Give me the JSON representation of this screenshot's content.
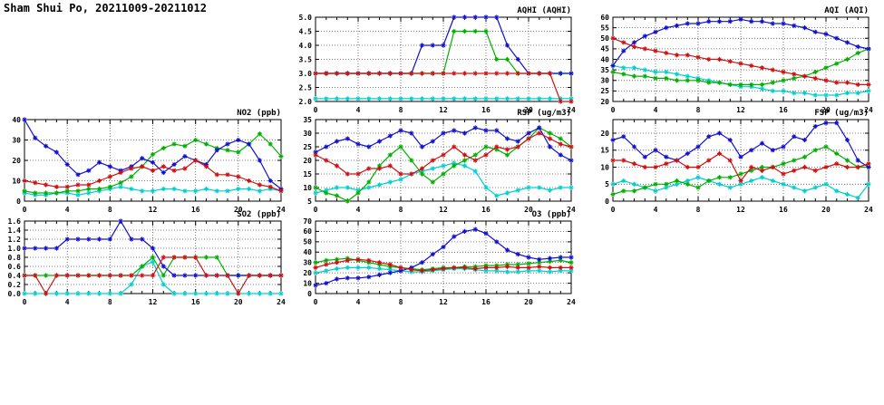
{
  "page_title": "Sham Shui Po, 20211009-20211012",
  "colors": {
    "blue": "#1010d0",
    "red": "#d01010",
    "green": "#00b000",
    "cyan": "#00d0d0"
  },
  "chart_data": [
    {
      "id": "aqhi",
      "type": "line",
      "title": "AQHI (AQHI)",
      "xlabel": "",
      "ylabel": "",
      "x_range": [
        0,
        24
      ],
      "xticks": [
        0,
        4,
        8,
        12,
        16,
        20,
        24
      ],
      "ylim": [
        2,
        5
      ],
      "yticks": [
        2,
        2.5,
        3,
        3.5,
        4,
        4.5,
        5
      ],
      "ydecimals": 1,
      "grid": true,
      "legend": "none",
      "series": [
        {
          "name": "cyan",
          "color": "cyan",
          "values": [
            2.1,
            2.1,
            2.1,
            2.1,
            2.1,
            2.1,
            2.1,
            2.1,
            2.1,
            2.1,
            2.1,
            2.1,
            2.1,
            2.1,
            2.1,
            2.1,
            2.1,
            2.1,
            2.1,
            2.1,
            2.1,
            2.1,
            2.1,
            2.1,
            2.1
          ]
        },
        {
          "name": "green",
          "color": "green",
          "values": [
            3,
            3,
            3,
            3,
            3,
            3,
            3,
            3,
            3,
            3,
            3,
            3,
            3,
            4.5,
            4.5,
            4.5,
            4.5,
            3.5,
            3.5,
            3,
            3,
            3,
            3,
            3,
            3
          ]
        },
        {
          "name": "blue",
          "color": "blue",
          "values": [
            3,
            3,
            3,
            3,
            3,
            3,
            3,
            3,
            3,
            3,
            4,
            4,
            4,
            5,
            5,
            5,
            5,
            5,
            4,
            3.5,
            3,
            3,
            3,
            3,
            3
          ]
        },
        {
          "name": "red",
          "color": "red",
          "values": [
            3,
            3,
            3,
            3,
            3,
            3,
            3,
            3,
            3,
            3,
            3,
            3,
            3,
            3,
            3,
            3,
            3,
            3,
            3,
            3,
            3,
            3,
            3,
            2,
            2
          ]
        }
      ]
    },
    {
      "id": "aqi",
      "type": "line",
      "title": "AQI (AQI)",
      "xlabel": "",
      "ylabel": "",
      "x_range": [
        0,
        24
      ],
      "xticks": [
        0,
        4,
        8,
        12,
        16,
        20,
        24
      ],
      "ylim": [
        20,
        60
      ],
      "yticks": [
        20,
        25,
        30,
        35,
        40,
        45,
        50,
        55,
        60
      ],
      "ydecimals": 0,
      "grid": true,
      "legend": "none",
      "series": [
        {
          "name": "cyan",
          "color": "cyan",
          "values": [
            37,
            36,
            36,
            35,
            34,
            34,
            33,
            32,
            31,
            30,
            29,
            28,
            27,
            27,
            26,
            25,
            25,
            24,
            24,
            23,
            23,
            23,
            24,
            24,
            25
          ]
        },
        {
          "name": "green",
          "color": "green",
          "values": [
            34,
            33,
            32,
            32,
            31,
            31,
            30,
            30,
            30,
            29,
            29,
            28,
            28,
            28,
            28,
            29,
            30,
            31,
            32,
            34,
            36,
            38,
            40,
            43,
            45
          ]
        },
        {
          "name": "blue",
          "color": "blue",
          "values": [
            37,
            44,
            48,
            51,
            53,
            55,
            56,
            57,
            57,
            58,
            58,
            58,
            59,
            58,
            58,
            57,
            57,
            56,
            55,
            53,
            52,
            50,
            48,
            46,
            45
          ]
        },
        {
          "name": "red",
          "color": "red",
          "values": [
            50,
            48,
            46,
            45,
            44,
            43,
            42,
            42,
            41,
            40,
            40,
            39,
            38,
            37,
            36,
            35,
            34,
            33,
            32,
            31,
            30,
            29,
            29,
            28,
            28
          ]
        }
      ]
    },
    {
      "id": "no2",
      "type": "line",
      "title": "NO2 (ppb)",
      "xlabel": "",
      "ylabel": "",
      "x_range": [
        0,
        24
      ],
      "xticks": [
        0,
        4,
        8,
        12,
        16,
        20,
        24
      ],
      "ylim": [
        0,
        40
      ],
      "yticks": [
        0,
        10,
        20,
        30,
        40
      ],
      "ydecimals": 0,
      "grid": true,
      "legend": "none",
      "series": [
        {
          "name": "cyan",
          "color": "cyan",
          "values": [
            4,
            3,
            3,
            4,
            4,
            3,
            4,
            5,
            6,
            7,
            6,
            5,
            5,
            6,
            6,
            5,
            5,
            6,
            5,
            5,
            6,
            6,
            5,
            6,
            5
          ]
        },
        {
          "name": "green",
          "color": "green",
          "values": [
            5,
            4,
            4,
            4,
            5,
            5,
            6,
            6,
            7,
            9,
            12,
            17,
            23,
            26,
            28,
            27,
            30,
            28,
            26,
            25,
            24,
            28,
            33,
            28,
            22
          ]
        },
        {
          "name": "blue",
          "color": "blue",
          "values": [
            40,
            31,
            27,
            24,
            18,
            13,
            15,
            19,
            17,
            15,
            17,
            21,
            19,
            14,
            18,
            22,
            20,
            18,
            25,
            28,
            30,
            28,
            20,
            10,
            6
          ]
        },
        {
          "name": "red",
          "color": "red",
          "values": [
            10,
            9,
            8,
            7,
            7,
            8,
            8,
            10,
            12,
            14,
            16,
            17,
            15,
            17,
            15,
            16,
            20,
            17,
            13,
            13,
            12,
            10,
            8,
            7,
            5
          ]
        }
      ]
    },
    {
      "id": "rsp",
      "type": "line",
      "title": "RSP (ug/m3)",
      "xlabel": "",
      "ylabel": "",
      "x_range": [
        0,
        24
      ],
      "xticks": [
        0,
        4,
        8,
        12,
        16,
        20,
        24
      ],
      "ylim": [
        5,
        35
      ],
      "yticks": [
        5,
        10,
        15,
        20,
        25,
        30,
        35
      ],
      "ydecimals": 0,
      "grid": true,
      "legend": "none",
      "series": [
        {
          "name": "cyan",
          "color": "cyan",
          "values": [
            8,
            9,
            10,
            10,
            9,
            10,
            11,
            12,
            13,
            15,
            16,
            17,
            18,
            19,
            18,
            16,
            10,
            7,
            8,
            9,
            10,
            10,
            9,
            10,
            10
          ]
        },
        {
          "name": "green",
          "color": "green",
          "values": [
            10,
            8,
            7,
            5,
            8,
            12,
            18,
            22,
            25,
            20,
            15,
            12,
            15,
            18,
            20,
            22,
            25,
            24,
            22,
            25,
            28,
            32,
            30,
            28,
            25
          ]
        },
        {
          "name": "blue",
          "color": "blue",
          "values": [
            23,
            25,
            27,
            28,
            26,
            25,
            27,
            29,
            31,
            30,
            25,
            27,
            30,
            31,
            30,
            32,
            31,
            31,
            28,
            27,
            30,
            32,
            25,
            22,
            20
          ]
        },
        {
          "name": "red",
          "color": "red",
          "values": [
            22,
            20,
            18,
            15,
            15,
            17,
            17,
            18,
            15,
            15,
            17,
            20,
            22,
            25,
            22,
            20,
            22,
            25,
            24,
            25,
            28,
            30,
            28,
            26,
            25
          ]
        }
      ]
    },
    {
      "id": "fsp",
      "type": "line",
      "title": "FSP (ug/m3)",
      "xlabel": "",
      "ylabel": "",
      "x_range": [
        0,
        24
      ],
      "xticks": [
        0,
        4,
        8,
        12,
        16,
        20,
        24
      ],
      "ylim": [
        0,
        24
      ],
      "yticks": [
        0,
        5,
        10,
        15,
        20
      ],
      "ydecimals": 0,
      "grid": true,
      "legend": "none",
      "series": [
        {
          "name": "cyan",
          "color": "cyan",
          "values": [
            5,
            6,
            5,
            4,
            3,
            4,
            5,
            6,
            7,
            6,
            5,
            4,
            5,
            6,
            7,
            6,
            5,
            4,
            3,
            4,
            5,
            3,
            2,
            1,
            5
          ]
        },
        {
          "name": "green",
          "color": "green",
          "values": [
            2,
            3,
            3,
            4,
            5,
            5,
            6,
            5,
            4,
            6,
            7,
            7,
            8,
            9,
            10,
            10,
            11,
            12,
            13,
            15,
            16,
            14,
            12,
            10,
            10
          ]
        },
        {
          "name": "blue",
          "color": "blue",
          "values": [
            18,
            19,
            16,
            13,
            15,
            13,
            12,
            14,
            16,
            19,
            20,
            18,
            13,
            15,
            17,
            15,
            16,
            19,
            18,
            22,
            23,
            23,
            18,
            12,
            10
          ]
        },
        {
          "name": "red",
          "color": "red",
          "values": [
            12,
            12,
            11,
            10,
            10,
            11,
            12,
            10,
            10,
            12,
            14,
            12,
            6,
            10,
            9,
            10,
            8,
            9,
            10,
            9,
            10,
            11,
            10,
            10,
            11
          ]
        }
      ]
    },
    {
      "id": "so2",
      "type": "line",
      "title": "SO2 (ppb)",
      "xlabel": "",
      "ylabel": "",
      "x_range": [
        0,
        24
      ],
      "xticks": [
        0,
        4,
        8,
        12,
        16,
        20,
        24
      ],
      "ylim": [
        0,
        1.6
      ],
      "yticks": [
        0,
        0.2,
        0.4,
        0.6,
        0.8,
        1.0,
        1.2,
        1.4,
        1.6
      ],
      "ydecimals": 1,
      "grid": true,
      "legend": "none",
      "series": [
        {
          "name": "cyan",
          "color": "cyan",
          "values": [
            0,
            0,
            0,
            0,
            0,
            0,
            0,
            0,
            0,
            0,
            0.2,
            0.6,
            0.7,
            0.2,
            0,
            0,
            0,
            0,
            0,
            0,
            0,
            0,
            0,
            0,
            0
          ]
        },
        {
          "name": "green",
          "color": "green",
          "values": [
            0.4,
            0.4,
            0.4,
            0.4,
            0.4,
            0.4,
            0.4,
            0.4,
            0.4,
            0.4,
            0.4,
            0.6,
            0.8,
            0.4,
            0.8,
            0.8,
            0.8,
            0.8,
            0.8,
            0.4,
            0.4,
            0.4,
            0.4,
            0.4,
            0.4
          ]
        },
        {
          "name": "blue",
          "color": "blue",
          "values": [
            1.0,
            1.0,
            1.0,
            1.0,
            1.2,
            1.2,
            1.2,
            1.2,
            1.2,
            1.6,
            1.2,
            1.2,
            1.0,
            0.6,
            0.4,
            0.4,
            0.4,
            0.4,
            0.4,
            0.4,
            0.4,
            0.4,
            0.4,
            0.4,
            0.4
          ]
        },
        {
          "name": "red",
          "color": "red",
          "values": [
            0.4,
            0.4,
            0,
            0.4,
            0.4,
            0.4,
            0.4,
            0.4,
            0.4,
            0.4,
            0.4,
            0.4,
            0.4,
            0.8,
            0.8,
            0.8,
            0.8,
            0.4,
            0.4,
            0.4,
            0,
            0.4,
            0.4,
            0.4,
            0.4
          ]
        }
      ]
    },
    {
      "id": "o3",
      "type": "line",
      "title": "O3 (ppb)",
      "xlabel": "",
      "ylabel": "",
      "x_range": [
        0,
        24
      ],
      "xticks": [
        0,
        4,
        8,
        12,
        16,
        20,
        24
      ],
      "ylim": [
        0,
        70
      ],
      "yticks": [
        0,
        10,
        20,
        30,
        40,
        50,
        60,
        70
      ],
      "ydecimals": 0,
      "grid": true,
      "legend": "none",
      "series": [
        {
          "name": "cyan",
          "color": "cyan",
          "values": [
            20,
            22,
            24,
            25,
            25,
            25,
            24,
            23,
            22,
            21,
            21,
            22,
            23,
            24,
            24,
            23,
            22,
            22,
            21,
            21,
            22,
            22,
            21,
            22,
            22
          ]
        },
        {
          "name": "green",
          "color": "green",
          "values": [
            30,
            32,
            33,
            34,
            32,
            30,
            28,
            26,
            25,
            24,
            23,
            24,
            25,
            25,
            26,
            26,
            27,
            27,
            28,
            28,
            29,
            30,
            31,
            32,
            30
          ]
        },
        {
          "name": "blue",
          "color": "blue",
          "values": [
            8,
            10,
            14,
            15,
            15,
            16,
            18,
            20,
            22,
            25,
            30,
            38,
            45,
            55,
            60,
            62,
            58,
            50,
            42,
            38,
            35,
            33,
            34,
            35,
            35
          ]
        },
        {
          "name": "red",
          "color": "red",
          "values": [
            25,
            28,
            30,
            32,
            33,
            32,
            30,
            28,
            25,
            23,
            22,
            23,
            24,
            25,
            25,
            24,
            25,
            25,
            26,
            25,
            25,
            26,
            25,
            25,
            25
          ]
        }
      ]
    }
  ]
}
